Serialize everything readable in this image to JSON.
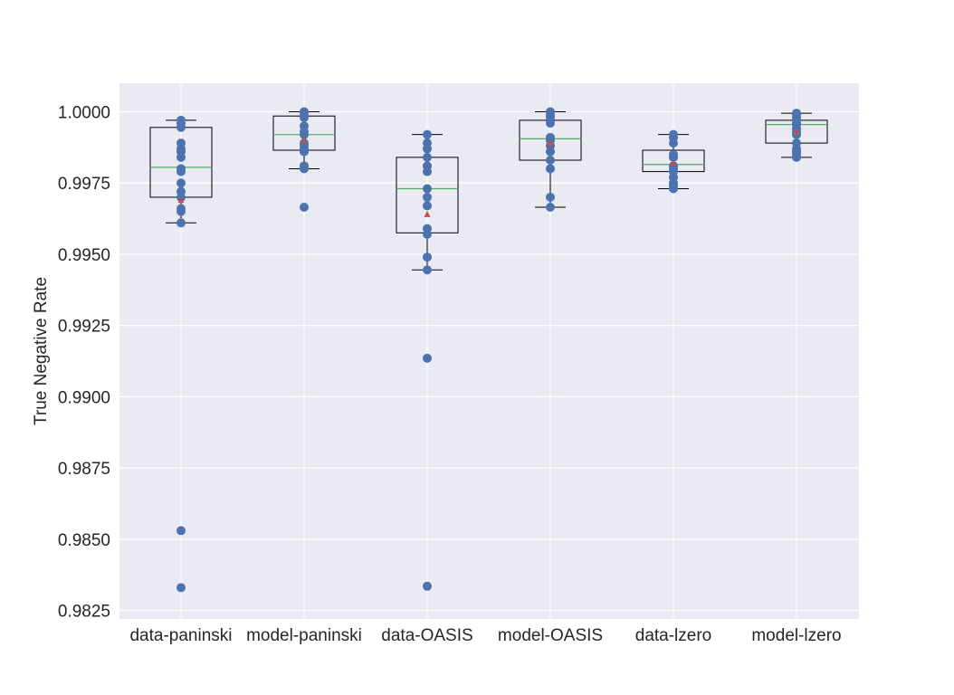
{
  "chart_data": {
    "type": "box",
    "title": "",
    "xlabel": "",
    "ylabel": "True Negative Rate",
    "ylim": [
      0.9822,
      1.001
    ],
    "yticks": [
      0.9825,
      0.985,
      0.9875,
      0.99,
      0.9925,
      0.995,
      0.9975,
      1.0
    ],
    "ytick_labels": [
      "0.9825",
      "0.9850",
      "0.9875",
      "0.9900",
      "0.9925",
      "0.9950",
      "0.9975",
      "1.0000"
    ],
    "grid": true,
    "legend": "none",
    "categories": [
      "data-paninski",
      "model-paninski",
      "data-OASIS",
      "model-OASIS",
      "data-lzero",
      "model-lzero"
    ],
    "boxes": [
      {
        "name": "data-paninski",
        "q1": 0.997,
        "median": 0.99805,
        "q3": 0.99945,
        "whisker_low": 0.9961,
        "whisker_high": 0.9997,
        "mean": 0.9969,
        "points": [
          0.9997,
          0.9996,
          0.99945,
          0.9989,
          0.9987,
          0.9986,
          0.9984,
          0.998,
          0.9979,
          0.9975,
          0.9972,
          0.997,
          0.9966,
          0.9965,
          0.9961,
          0.9853,
          0.9833
        ]
      },
      {
        "name": "model-paninski",
        "q1": 0.99865,
        "median": 0.9992,
        "q3": 0.99985,
        "whisker_low": 0.998,
        "whisker_high": 1.0,
        "mean": 0.999,
        "points": [
          1.0,
          0.9999,
          0.9998,
          0.9995,
          0.9993,
          0.9992,
          0.9989,
          0.9988,
          0.9987,
          0.9986,
          0.9981,
          0.998,
          0.99665
        ]
      },
      {
        "name": "data-OASIS",
        "q1": 0.99575,
        "median": 0.9973,
        "q3": 0.9984,
        "whisker_low": 0.99445,
        "whisker_high": 0.9992,
        "mean": 0.9964,
        "points": [
          0.9992,
          0.9989,
          0.9987,
          0.9984,
          0.9981,
          0.9979,
          0.9973,
          0.997,
          0.9967,
          0.9959,
          0.9957,
          0.9949,
          0.99445,
          0.99135,
          0.98335
        ]
      },
      {
        "name": "model-OASIS",
        "q1": 0.9983,
        "median": 0.99905,
        "q3": 0.9997,
        "whisker_low": 0.99665,
        "whisker_high": 1.0,
        "mean": 0.9989,
        "points": [
          1.0,
          0.9999,
          0.9998,
          0.9996,
          0.9991,
          0.999,
          0.9988,
          0.9986,
          0.9983,
          0.998,
          0.997,
          0.99665
        ]
      },
      {
        "name": "data-lzero",
        "q1": 0.9979,
        "median": 0.99815,
        "q3": 0.99865,
        "whisker_low": 0.9973,
        "whisker_high": 0.9992,
        "mean": 0.9982,
        "points": [
          0.9992,
          0.9991,
          0.9989,
          0.9985,
          0.9984,
          0.9981,
          0.998,
          0.9979,
          0.9977,
          0.9975,
          0.9974,
          0.9973
        ]
      },
      {
        "name": "model-lzero",
        "q1": 0.9989,
        "median": 0.99955,
        "q3": 0.9997,
        "whisker_low": 0.9984,
        "whisker_high": 0.99995,
        "mean": 0.9993,
        "points": [
          0.99995,
          0.9999,
          0.9998,
          0.9997,
          0.9996,
          0.99955,
          0.9994,
          0.9993,
          0.9992,
          0.9989,
          0.9987,
          0.9986,
          0.9985,
          0.9984
        ]
      }
    ],
    "colors": {
      "background": "#eaeaf2",
      "grid": "#ffffff",
      "point": "#4c72b0",
      "median": "#55a868",
      "mean": "#c44e52",
      "box": "#000000"
    }
  }
}
